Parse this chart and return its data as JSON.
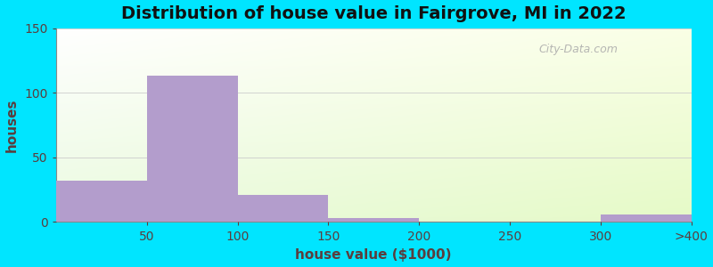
{
  "title": "Distribution of house value in Fairgrove, MI in 2022",
  "xlabel": "house value ($1000)",
  "ylabel": "houses",
  "bar_labels": [
    "50",
    "100",
    "150",
    "200",
    "250",
    "300",
    ">400"
  ],
  "bar_values": [
    32,
    113,
    21,
    3,
    0,
    0,
    6
  ],
  "bar_color": "#b39dcc",
  "bar_edgecolor": "#b39dcc",
  "ylim": [
    0,
    150
  ],
  "yticks": [
    0,
    50,
    100,
    150
  ],
  "outer_background": "#00e5ff",
  "title_fontsize": 14,
  "axis_label_fontsize": 11,
  "tick_fontsize": 10,
  "watermark_text": "City-Data.com",
  "watermark_color": "#aaaaaa",
  "label_color": "#5a3e3e",
  "tick_color": "#5a3e3e",
  "grid_color": "#cccccc",
  "spine_color": "#888888"
}
